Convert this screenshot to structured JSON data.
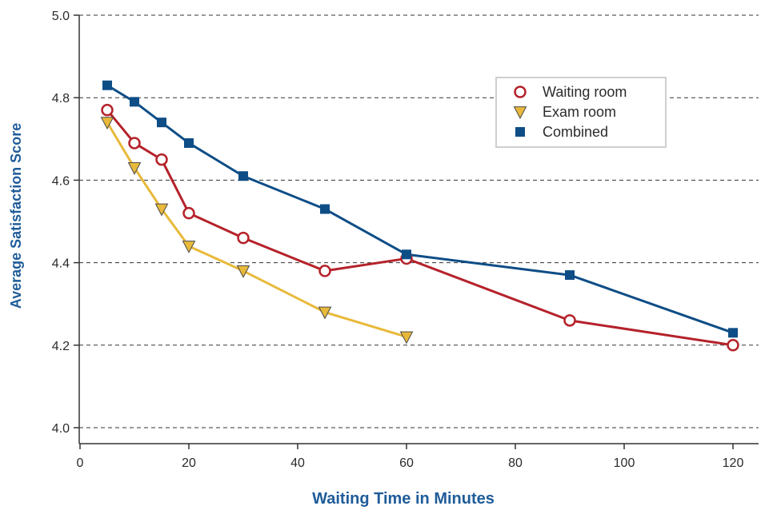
{
  "chart_data": {
    "type": "line",
    "title": "",
    "xlabel": "Waiting Time in Minutes",
    "ylabel": "Average Satisfaction Score",
    "xlim": [
      0,
      125
    ],
    "ylim": [
      4.0,
      5.0
    ],
    "xticks": [
      0,
      20,
      40,
      60,
      80,
      100,
      120
    ],
    "yticks": [
      4.0,
      4.2,
      4.4,
      4.6,
      4.8,
      5.0
    ],
    "ytick_labels": [
      "4.0",
      "4.2",
      "4.4",
      "4.6",
      "4.8",
      "5.0"
    ],
    "grid": "horizontal-dashed",
    "legend_position": "top-right",
    "series": [
      {
        "name": "Waiting room",
        "color": "#b5222b",
        "marker": "open-circle",
        "x": [
          5,
          10,
          15,
          20,
          30,
          45,
          60,
          90,
          120
        ],
        "y": [
          4.77,
          4.69,
          4.65,
          4.52,
          4.46,
          4.38,
          4.41,
          4.26,
          4.2
        ]
      },
      {
        "name": "Exam room",
        "color": "#e8b93a",
        "marker": "triangle-down",
        "x": [
          5,
          10,
          15,
          20,
          30,
          45,
          60
        ],
        "y": [
          4.74,
          4.63,
          4.53,
          4.44,
          4.38,
          4.28,
          4.22
        ]
      },
      {
        "name": "Combined",
        "color": "#0e4d86",
        "marker": "square",
        "x": [
          5,
          10,
          15,
          20,
          30,
          45,
          60,
          90,
          120
        ],
        "y": [
          4.83,
          4.79,
          4.74,
          4.69,
          4.61,
          4.53,
          4.42,
          4.37,
          4.23
        ]
      }
    ]
  }
}
